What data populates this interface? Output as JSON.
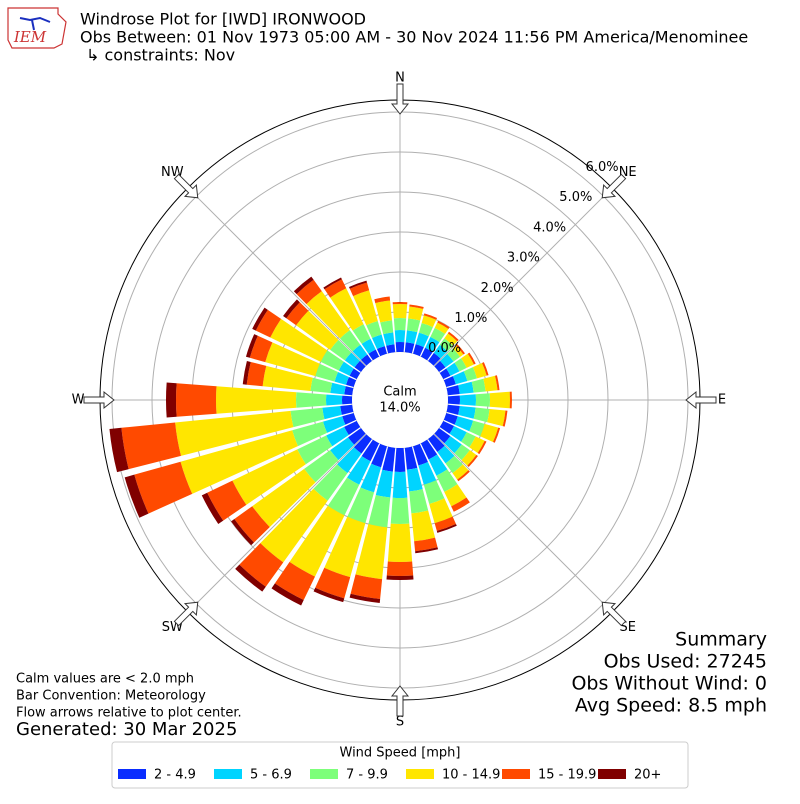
{
  "chart_data": {
    "type": "windrose",
    "logo_text": "IEM",
    "title": "Windrose Plot for [IWD] IRONWOOD",
    "subtitle": "Obs Between: 01 Nov 1973 05:00 AM - 30 Nov 2024 11:56 PM America/Menominee",
    "constraints": "↳ constraints: Nov",
    "direction_labels": [
      "N",
      "NE",
      "E",
      "SE",
      "S",
      "SW",
      "W",
      "NW"
    ],
    "calm_label": "Calm",
    "calm_value": 14.0,
    "calm_value_label": "14.0%",
    "directions": [
      0,
      10,
      20,
      30,
      40,
      50,
      60,
      70,
      80,
      90,
      100,
      110,
      120,
      130,
      140,
      150,
      160,
      170,
      180,
      190,
      200,
      210,
      220,
      230,
      240,
      250,
      260,
      270,
      280,
      290,
      300,
      310,
      320,
      330,
      340,
      350
    ],
    "rlim": [
      0,
      6.3
    ],
    "rticks": [
      {
        "value": 0,
        "label": "0.0%"
      },
      {
        "value": 1,
        "label": "1.0%"
      },
      {
        "value": 2,
        "label": "2.0%"
      },
      {
        "value": 3,
        "label": "3.0%"
      },
      {
        "value": 4,
        "label": "4.0%"
      },
      {
        "value": 5,
        "label": "5.0%"
      },
      {
        "value": 6,
        "label": "6.0%"
      }
    ],
    "grid": true,
    "legend_title": "Wind Speed [mph]",
    "series": [
      {
        "name": "2 - 4.9",
        "color": "#0a2dff",
        "values": [
          0.25,
          0.25,
          0.25,
          0.25,
          0.25,
          0.2,
          0.2,
          0.25,
          0.3,
          0.3,
          0.3,
          0.3,
          0.3,
          0.35,
          0.4,
          0.45,
          0.5,
          0.55,
          0.6,
          0.6,
          0.55,
          0.5,
          0.45,
          0.4,
          0.35,
          0.3,
          0.3,
          0.25,
          0.2,
          0.2,
          0.2,
          0.2,
          0.2,
          0.2,
          0.2,
          0.2
        ]
      },
      {
        "name": "5 - 6.9",
        "color": "#00d4ff",
        "values": [
          0.3,
          0.3,
          0.3,
          0.3,
          0.25,
          0.25,
          0.25,
          0.3,
          0.35,
          0.4,
          0.4,
          0.4,
          0.35,
          0.35,
          0.35,
          0.45,
          0.5,
          0.55,
          0.65,
          0.65,
          0.65,
          0.65,
          0.6,
          0.55,
          0.5,
          0.5,
          0.45,
          0.4,
          0.35,
          0.3,
          0.3,
          0.3,
          0.3,
          0.3,
          0.3,
          0.3
        ]
      },
      {
        "name": "7 - 9.9",
        "color": "#7dff7a",
        "values": [
          0.3,
          0.3,
          0.25,
          0.25,
          0.2,
          0.2,
          0.2,
          0.25,
          0.3,
          0.35,
          0.35,
          0.3,
          0.25,
          0.25,
          0.3,
          0.45,
          0.5,
          0.55,
          0.65,
          0.75,
          0.8,
          0.85,
          0.85,
          0.8,
          0.8,
          0.8,
          0.8,
          0.75,
          0.5,
          0.5,
          0.5,
          0.45,
          0.45,
          0.4,
          0.35,
          0.3
        ]
      },
      {
        "name": "10 - 14.9",
        "color": "#ffe600",
        "values": [
          0.35,
          0.3,
          0.2,
          0.15,
          0.15,
          0.1,
          0.2,
          0.25,
          0.3,
          0.5,
          0.4,
          0.35,
          0.25,
          0.2,
          0.2,
          0.4,
          0.5,
          0.7,
          0.95,
          1.3,
          1.4,
          1.7,
          1.9,
          1.6,
          1.8,
          2.9,
          2.9,
          2.0,
          1.2,
          1.3,
          1.4,
          1.05,
          1.2,
          1.0,
          0.8,
          0.5
        ]
      },
      {
        "name": "15 - 19.9",
        "color": "#ff4a00",
        "values": [
          0.05,
          0.05,
          0.05,
          0.05,
          0.05,
          0.05,
          0.05,
          0.05,
          0.05,
          0.05,
          0.05,
          0.05,
          0.05,
          0.05,
          0.05,
          0.15,
          0.2,
          0.25,
          0.35,
          0.5,
          0.55,
          0.65,
          0.75,
          0.55,
          0.7,
          1.2,
          1.35,
          1.0,
          0.4,
          0.4,
          0.4,
          0.3,
          0.35,
          0.25,
          0.2,
          0.1
        ]
      },
      {
        "name": "20+",
        "color": "#800000",
        "values": [
          0,
          0,
          0,
          0,
          0,
          0,
          0,
          0,
          0,
          0,
          0,
          0,
          0,
          0,
          0,
          0,
          0.05,
          0.05,
          0.1,
          0.1,
          0.1,
          0.15,
          0.15,
          0.1,
          0.15,
          0.25,
          0.3,
          0.25,
          0.1,
          0.1,
          0.1,
          0.1,
          0.1,
          0.05,
          0.05,
          0
        ]
      }
    ],
    "summary_title": "Summary",
    "summary": [
      "Obs Used: 27245",
      "Obs Without Wind: 0",
      "Avg Speed: 8.5 mph"
    ],
    "notes": [
      "Calm values are < 2.0 mph",
      "Bar Convention: Meteorology",
      "Flow arrows relative to plot center."
    ],
    "generated": "Generated: 30 Mar 2025"
  }
}
